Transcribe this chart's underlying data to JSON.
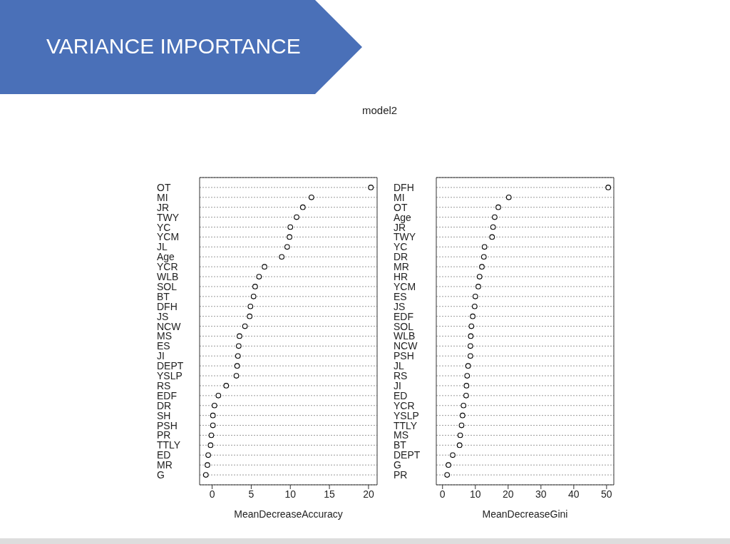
{
  "chart_data": [
    {
      "type": "scatter",
      "title": "VARIANCE IMPORTANCE",
      "subtitle": "model2",
      "orientation": "horizontal",
      "marker": "circle",
      "grid": "y",
      "color": "#000000",
      "xlabel": "MeanDecreaseAccuracy",
      "xlim": [
        -1.6,
        21.1
      ],
      "xticks": [
        0,
        5,
        10,
        15,
        20
      ],
      "categories": [
        "OT",
        "MI",
        "JR",
        "TWY",
        "YC",
        "YCM",
        "JL",
        "Age",
        "YCR",
        "WLB",
        "SOL",
        "BT",
        "DFH",
        "JS",
        "NCW",
        "MS",
        "ES",
        "JI",
        "DEPT",
        "YSLP",
        "RS",
        "EDF",
        "DR",
        "SH",
        "PSH",
        "PR",
        "TTLY",
        "ED",
        "MR",
        "G"
      ],
      "values": [
        20.3,
        12.7,
        11.6,
        10.8,
        10.0,
        9.9,
        9.6,
        8.9,
        6.7,
        6.0,
        5.5,
        5.3,
        4.9,
        4.8,
        4.2,
        3.5,
        3.4,
        3.3,
        3.2,
        3.1,
        1.8,
        0.8,
        0.3,
        0.1,
        0.1,
        -0.1,
        -0.2,
        -0.5,
        -0.6,
        -0.8
      ]
    },
    {
      "type": "scatter",
      "orientation": "horizontal",
      "marker": "circle",
      "grid": "y",
      "color": "#000000",
      "xlabel": "MeanDecreaseGini",
      "xlim": [
        -1.9,
        52.2
      ],
      "xticks": [
        0,
        10,
        20,
        30,
        40,
        50
      ],
      "categories": [
        "DFH",
        "MI",
        "OT",
        "Age",
        "JR",
        "TWY",
        "YC",
        "DR",
        "MR",
        "HR",
        "YCM",
        "ES",
        "JS",
        "EDF",
        "SOL",
        "WLB",
        "NCW",
        "PSH",
        "JL",
        "RS",
        "JI",
        "ED",
        "YCR",
        "YSLP",
        "TTLY",
        "MS",
        "BT",
        "DEPT",
        "G",
        "PR"
      ],
      "values": [
        50.5,
        20.2,
        17.0,
        15.9,
        15.4,
        15.1,
        12.8,
        12.6,
        12.0,
        11.3,
        10.9,
        10.0,
        9.8,
        9.2,
        8.8,
        8.6,
        8.5,
        8.5,
        7.8,
        7.5,
        7.3,
        7.2,
        6.4,
        6.1,
        5.8,
        5.4,
        5.2,
        3.1,
        1.8,
        1.4
      ]
    }
  ]
}
